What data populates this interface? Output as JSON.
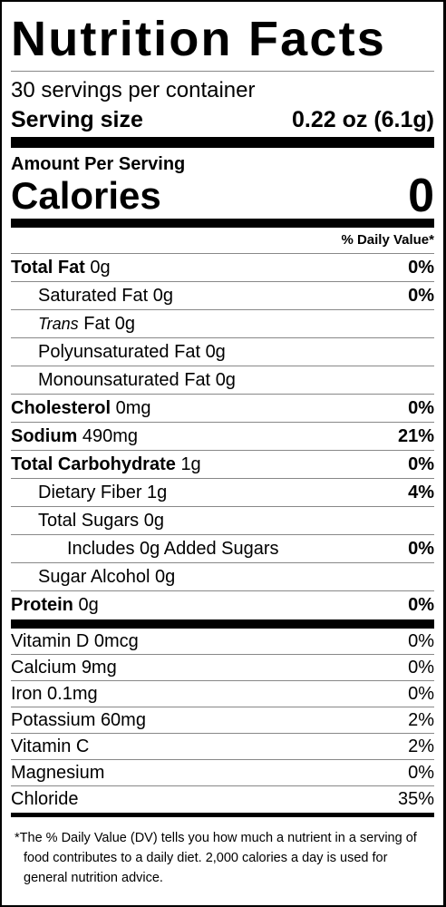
{
  "header": {
    "title": "Nutrition Facts",
    "servings": "30 servings per container",
    "serving_size_label": "Serving size",
    "serving_size": "0.22 oz (6.1g)"
  },
  "calories": {
    "heading": "Amount Per Serving",
    "label": "Calories",
    "value": "0"
  },
  "dv_heading": "% Daily Value*",
  "nutrients": [
    {
      "name": "Total Fat",
      "amount": "0g",
      "dv": "0%"
    },
    {
      "name": "Saturated Fat",
      "amount": "0g",
      "dv": "0%"
    },
    {
      "name_italic": "Trans",
      "name": "Fat",
      "amount": "0g"
    },
    {
      "name": "Polyunsaturated Fat",
      "amount": "0g"
    },
    {
      "name": "Monounsaturated Fat",
      "amount": "0g"
    },
    {
      "name": "Cholesterol",
      "amount": "0mg",
      "dv": "0%"
    },
    {
      "name": "Sodium",
      "amount": "490mg",
      "dv": "21%"
    },
    {
      "name": "Total Carbohydrate",
      "amount": "1g",
      "dv": "0%"
    },
    {
      "name": "Dietary Fiber",
      "amount": "1g",
      "dv": "4%"
    },
    {
      "name": "Total Sugars",
      "amount": "0g"
    },
    {
      "name": "Includes 0g Added Sugars",
      "dv": "0%"
    },
    {
      "name": "Sugar Alcohol",
      "amount": "0g"
    },
    {
      "name": "Protein",
      "amount": "0g",
      "dv": "0%"
    }
  ],
  "vitamins": [
    {
      "name": "Vitamin D",
      "amount": "0mcg",
      "dv": "0%"
    },
    {
      "name": "Calcium",
      "amount": "9mg",
      "dv": "0%"
    },
    {
      "name": "Iron",
      "amount": "0.1mg",
      "dv": "0%"
    },
    {
      "name": "Potassium",
      "amount": "60mg",
      "dv": "2%"
    },
    {
      "name": "Vitamin C",
      "dv": "2%"
    },
    {
      "name": "Magnesium",
      "dv": "0%"
    },
    {
      "name": "Chloride",
      "dv": "35%"
    }
  ],
  "footnote": "*The % Daily Value (DV) tells you how much a nutrient in a serving of food contributes to a daily diet. 2,000 calories a day is used for general nutrition advice."
}
